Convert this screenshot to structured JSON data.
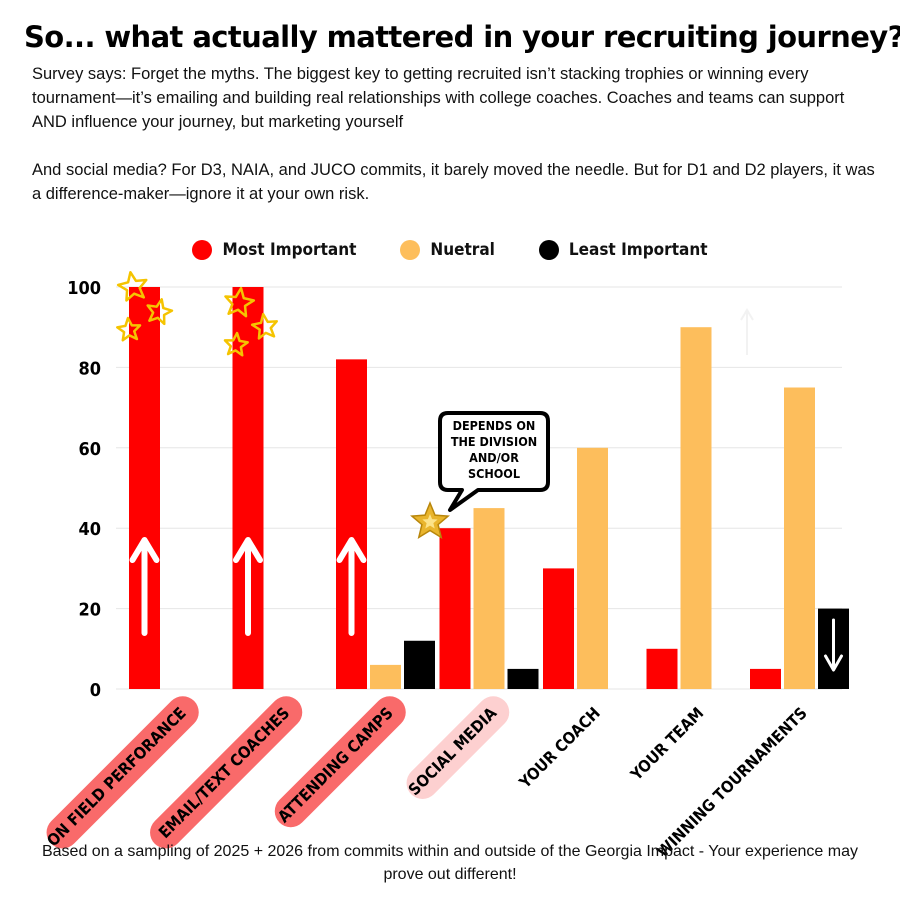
{
  "title": "So... what actually mattered in your recruiting journey?",
  "paragraphs": {
    "p1": "Survey says: Forget the myths. The biggest key to getting recruited isn’t stacking trophies or winning every tournament—it’s emailing and building real relationships with college coaches. Coaches and teams can support AND influence your journey, but marketing yourself",
    "p2": "And social media? For D3, NAIA, and JUCO commits, it barely moved the needle. But for D1 and D2 players, it was a difference-maker—ignore it at your own risk."
  },
  "footer": "Based on a sampling of 2025 + 2026 from commits within and outside of the Georgia Impact - Your experience may prove out different!",
  "callout": "Depends on the Division and/or School",
  "colors": {
    "most": "#ff0000",
    "neutral": "#fdbe5c",
    "least": "#000000",
    "highlight": "#f96a6a",
    "highlight_light": "#fdd0d0",
    "star": "#f5c400"
  },
  "chart_data": {
    "type": "bar",
    "categories": [
      "On Field Perforance",
      "Email/Text Coaches",
      "Attending Camps",
      "Social Media",
      "Your Coach",
      "Your Team",
      "Winning Tournaments"
    ],
    "series": [
      {
        "name": "Most Important",
        "values": [
          100,
          100,
          82,
          40,
          30,
          10,
          5
        ]
      },
      {
        "name": "Nuetral",
        "values": [
          0,
          0,
          6,
          45,
          60,
          90,
          75
        ]
      },
      {
        "name": "Least Important",
        "values": [
          0,
          0,
          12,
          5,
          0,
          0,
          20
        ]
      }
    ],
    "ylim": [
      0,
      100
    ],
    "yticks": [
      0,
      20,
      40,
      60,
      80,
      100
    ],
    "grid": true,
    "legend_position": "top-center",
    "xlabel": "",
    "ylabel": ""
  }
}
